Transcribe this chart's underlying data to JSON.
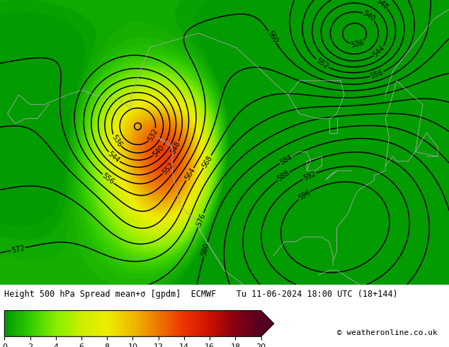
{
  "title_line": "Height 500 hPa Spread mean+σ [gpdm]  ECMWF    Tu 11-06-2024 18:00 UTC (18+144)",
  "copyright": "© weatheronline.co.uk",
  "colorbar_ticks": [
    0,
    2,
    4,
    6,
    8,
    10,
    12,
    14,
    16,
    18,
    20
  ],
  "background_color": "#ffffff",
  "contour_color": "#000000",
  "coastline_color": "#aaaaaa",
  "font_size_title": 8.5,
  "font_size_ticks": 8,
  "font_size_copyright": 8
}
